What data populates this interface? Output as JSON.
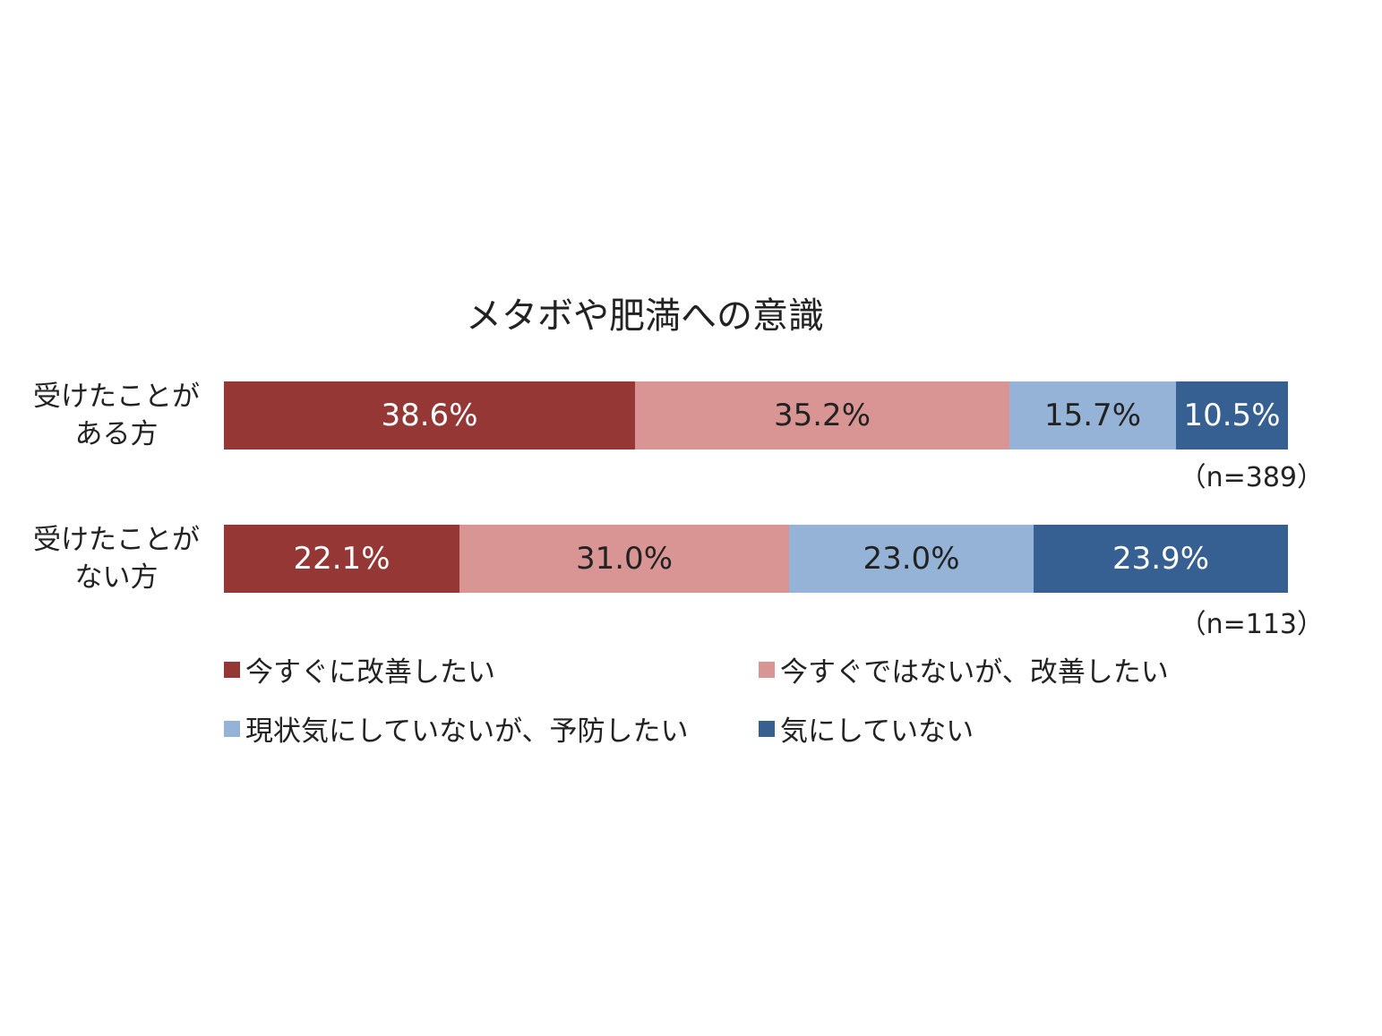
{
  "chart_data": {
    "type": "bar",
    "orientation": "horizontal",
    "stacked": true,
    "percent": true,
    "title": "メタボや肥満への意識",
    "categories": [
      "受けたことが\nある方",
      "受けたことが\nない方"
    ],
    "n_labels": [
      "（n=389）",
      "（n=113）"
    ],
    "series": [
      {
        "name": "今すぐに改善したい",
        "color": "#953735",
        "text_color": "#ffffff",
        "values": [
          38.6,
          22.1
        ],
        "labels": [
          "38.6%",
          "22.1%"
        ]
      },
      {
        "name": "今すぐではないが、改善したい",
        "color": "#d99594",
        "text_color": "#222222",
        "values": [
          35.2,
          31.0
        ],
        "labels": [
          "35.2%",
          "31.0%"
        ]
      },
      {
        "name": "現状気にしていないが、予防したい",
        "color": "#95b3d7",
        "text_color": "#222222",
        "values": [
          15.7,
          23.0
        ],
        "labels": [
          "15.7%",
          "23.0%"
        ]
      },
      {
        "name": "気にしていない",
        "color": "#376092",
        "text_color": "#ffffff",
        "values": [
          10.5,
          23.9
        ],
        "labels": [
          "10.5%",
          "23.9%"
        ]
      }
    ],
    "xlim": [
      0,
      100
    ],
    "grid": false,
    "legend": "bottom"
  }
}
